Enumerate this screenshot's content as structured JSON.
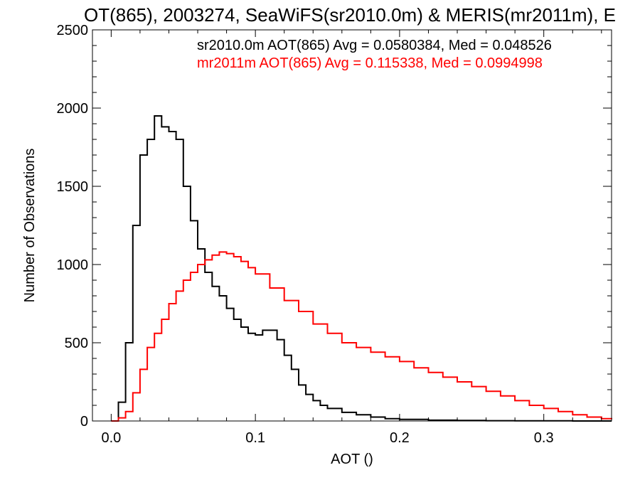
{
  "chart_data": {
    "type": "line",
    "title": "OT(865), 2003274, SeaWiFS(sr2010.0m) & MERIS(mr2011m), E",
    "xlabel": "AOT ()",
    "ylabel": "Number of Observations",
    "xlim": [
      -0.013,
      0.347
    ],
    "ylim": [
      0,
      2500
    ],
    "x_ticks": [
      0.0,
      0.1,
      0.2,
      0.3
    ],
    "x_tick_labels": [
      "0.0",
      "0.1",
      "0.2",
      "0.3"
    ],
    "y_ticks": [
      0,
      500,
      1000,
      1500,
      2000,
      2500
    ],
    "y_tick_labels": [
      "0",
      "500",
      "1000",
      "1500",
      "2000",
      "2500"
    ],
    "grid": false,
    "legend_position": "top-right",
    "annotations": [
      {
        "text": "sr2010.0m AOT(865) Avg = 0.0580384, Med = 0.048526",
        "color": "#000000"
      },
      {
        "text": "mr2011m AOT(865) Avg = 0.115338, Med = 0.0994998",
        "color": "#ff0000"
      }
    ],
    "series": [
      {
        "color": "#000000",
        "x": [
          0.0,
          0.005,
          0.01,
          0.015,
          0.02,
          0.025,
          0.03,
          0.035,
          0.04,
          0.045,
          0.05,
          0.055,
          0.06,
          0.065,
          0.07,
          0.075,
          0.08,
          0.085,
          0.09,
          0.095,
          0.1,
          0.105,
          0.11,
          0.115,
          0.12,
          0.125,
          0.13,
          0.135,
          0.14,
          0.145,
          0.15,
          0.16,
          0.17,
          0.18,
          0.19,
          0.2,
          0.22,
          0.24,
          0.26,
          0.28,
          0.3,
          0.32,
          0.347
        ],
        "y": [
          0,
          120,
          500,
          1250,
          1700,
          1800,
          1950,
          1880,
          1850,
          1800,
          1500,
          1280,
          1100,
          950,
          860,
          800,
          720,
          650,
          600,
          560,
          550,
          580,
          580,
          520,
          420,
          330,
          230,
          170,
          130,
          100,
          80,
          55,
          40,
          25,
          15,
          10,
          5,
          3,
          2,
          1,
          1,
          0,
          0
        ]
      },
      {
        "color": "#ff0000",
        "x": [
          0.0,
          0.005,
          0.01,
          0.015,
          0.02,
          0.025,
          0.03,
          0.035,
          0.04,
          0.045,
          0.05,
          0.055,
          0.06,
          0.065,
          0.07,
          0.075,
          0.08,
          0.085,
          0.09,
          0.095,
          0.1,
          0.11,
          0.12,
          0.13,
          0.14,
          0.15,
          0.16,
          0.17,
          0.18,
          0.19,
          0.2,
          0.21,
          0.22,
          0.23,
          0.24,
          0.25,
          0.26,
          0.27,
          0.28,
          0.29,
          0.3,
          0.31,
          0.32,
          0.33,
          0.34,
          0.347
        ],
        "y": [
          0,
          20,
          60,
          180,
          330,
          470,
          560,
          650,
          750,
          830,
          900,
          950,
          1000,
          1030,
          1060,
          1080,
          1070,
          1050,
          1020,
          980,
          940,
          850,
          770,
          700,
          620,
          560,
          500,
          470,
          440,
          410,
          380,
          340,
          310,
          280,
          250,
          220,
          190,
          160,
          130,
          100,
          80,
          60,
          40,
          25,
          15,
          10
        ]
      }
    ]
  }
}
